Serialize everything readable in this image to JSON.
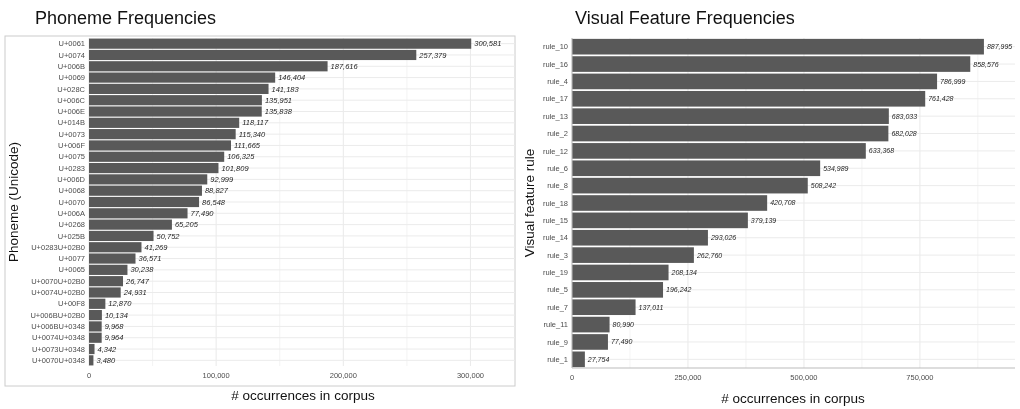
{
  "chart_data": [
    {
      "type": "bar",
      "orientation": "horizontal",
      "title": "Phoneme Frequencies",
      "xlabel": "# occurrences in corpus",
      "ylabel": "Phoneme (Unicode)",
      "color": "#595959",
      "categories": [
        "U+0061",
        "U+0074",
        "U+006B",
        "U+0069",
        "U+028C",
        "U+006C",
        "U+006E",
        "U+014B",
        "U+0073",
        "U+006F",
        "U+0075",
        "U+0283",
        "U+006D",
        "U+0068",
        "U+0070",
        "U+006A",
        "U+0268",
        "U+025B",
        "U+0283U+02B0",
        "U+0077",
        "U+0065",
        "U+0070U+02B0",
        "U+0074U+02B0",
        "U+00F8",
        "U+006BU+02B0",
        "U+006BU+0348",
        "U+0074U+0348",
        "U+0073U+0348",
        "U+0070U+0348"
      ],
      "values": [
        300581,
        257379,
        187616,
        146404,
        141183,
        135951,
        135838,
        118117,
        115340,
        111665,
        106325,
        101809,
        92999,
        88827,
        86548,
        77490,
        65205,
        50752,
        41269,
        36571,
        30238,
        26747,
        24931,
        12870,
        10134,
        9968,
        9964,
        4342,
        3480
      ],
      "xlim": [
        0,
        335000
      ],
      "xticks": [
        0,
        {
          "value": 50000,
          "label": null
        },
        {
          "value": 100000,
          "label": "100,000"
        },
        {
          "value": 150000,
          "label": null
        },
        {
          "value": 200000,
          "label": "200,000"
        },
        {
          "value": 250000,
          "label": null
        },
        {
          "value": 300000,
          "label": "300,000"
        }
      ],
      "grid": true,
      "value_labels": [
        "300,581",
        "257,379",
        "187,616",
        "146,404",
        "141,183",
        "135,951",
        "135,838",
        "118,117",
        "115,340",
        "111,665",
        "106,325",
        "101,809",
        "92,999",
        "88,827",
        "86,548",
        "77,490",
        "65,205",
        "50,752",
        "41,269",
        "36,571",
        "30,238",
        "26,747",
        "24,931",
        "12,870",
        "10,134",
        "9,968",
        "9,964",
        "4,342",
        "3,480"
      ]
    },
    {
      "type": "bar",
      "orientation": "horizontal",
      "title": "Visual Feature Frequencies",
      "xlabel": "# occurrences in corpus",
      "ylabel": "Visual feature rule",
      "color": "#595959",
      "categories": [
        "rule_10",
        "rule_16",
        "rule_4",
        "rule_17",
        "rule_13",
        "rule_2",
        "rule_12",
        "rule_6",
        "rule_8",
        "rule_18",
        "rule_15",
        "rule_14",
        "rule_3",
        "rule_19",
        "rule_5",
        "rule_7",
        "rule_11",
        "rule_9",
        "rule_1"
      ],
      "values": [
        887995,
        858576,
        786999,
        761428,
        683033,
        682028,
        633368,
        534989,
        508242,
        420708,
        379139,
        293026,
        262760,
        208134,
        196242,
        137011,
        80990,
        77490,
        27754
      ],
      "xlim": [
        0,
        955000
      ],
      "xticks": [
        0,
        {
          "value": 125000,
          "label": null
        },
        {
          "value": 250000,
          "label": "250,000"
        },
        {
          "value": 375000,
          "label": null
        },
        {
          "value": 500000,
          "label": "500,000"
        },
        {
          "value": 625000,
          "label": null
        },
        {
          "value": 750000,
          "label": "750,000"
        },
        {
          "value": 875000,
          "label": null
        }
      ],
      "grid": true,
      "value_labels": [
        "887,995",
        "858,576",
        "786,999",
        "761,428",
        "683,033",
        "682,028",
        "633,368",
        "534,989",
        "508,242",
        "420,708",
        "379,139",
        "293,026",
        "262,760",
        "208,134",
        "196,242",
        "137,011",
        "80,990",
        "77,490",
        "27,754"
      ]
    }
  ]
}
